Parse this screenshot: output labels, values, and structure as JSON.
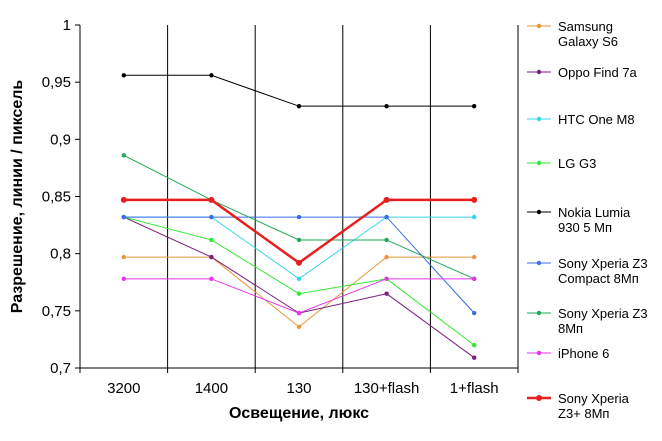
{
  "chart_data": {
    "type": "line",
    "xlabel": "Освещение,  люкс",
    "ylabel": "Разрешение,  линии / пиксель",
    "categories": [
      "3200",
      "1400",
      "130",
      "130+flash",
      "1+flash"
    ],
    "ylim": [
      0.7,
      1
    ],
    "yticks": [
      "0,7",
      "0,75",
      "0,8",
      "0,85",
      "0,9",
      "0,95",
      "1"
    ],
    "ytick_values": [
      0.7,
      0.75,
      0.8,
      0.85,
      0.9,
      0.95,
      1
    ],
    "grid": "vertical",
    "legend_position": "right",
    "series": [
      {
        "name": "Samsung Galaxy S6",
        "legend_lines": [
          "Samsung",
          "Galaxy S6"
        ],
        "color": "#e8963c",
        "width": 1,
        "values": [
          0.797,
          0.797,
          0.736,
          0.797,
          0.797
        ]
      },
      {
        "name": "Oppo Find 7a",
        "legend_lines": [
          "Oppo Find 7a"
        ],
        "color": "#7b1f7b",
        "width": 1,
        "values": [
          0.832,
          0.797,
          0.748,
          0.765,
          0.709
        ]
      },
      {
        "name": "HTC One M8",
        "legend_lines": [
          "HTC One M8"
        ],
        "color": "#33d6e8",
        "width": 1,
        "values": [
          0.832,
          0.832,
          0.778,
          0.832,
          0.832
        ]
      },
      {
        "name": "LG G3",
        "legend_lines": [
          "LG G3"
        ],
        "color": "#33e833",
        "width": 1,
        "values": [
          0.832,
          0.812,
          0.765,
          0.778,
          0.72
        ]
      },
      {
        "name": "Nokia Lumia 930 5 Мп",
        "legend_lines": [
          "Nokia Lumia",
          "930 5 Мп"
        ],
        "color": "#000000",
        "width": 1,
        "values": [
          0.956,
          0.956,
          0.929,
          0.929,
          0.929
        ]
      },
      {
        "name": "Sony Xperia Z3 Compact 8Мп",
        "legend_lines": [
          "Sony Xperia Z3",
          "Compact 8Мп"
        ],
        "color": "#3c6ce8",
        "width": 1,
        "values": [
          0.832,
          0.832,
          0.832,
          0.832,
          0.748
        ]
      },
      {
        "name": "Sony Xperia Z3 8Мп",
        "legend_lines": [
          "Sony Xperia Z3",
          "8Мп"
        ],
        "color": "#1fa85a",
        "width": 1,
        "values": [
          0.886,
          0.847,
          0.812,
          0.812,
          0.778
        ]
      },
      {
        "name": "iPhone 6",
        "legend_lines": [
          "iPhone 6"
        ],
        "color": "#e833e8",
        "width": 1,
        "values": [
          0.778,
          0.778,
          0.748,
          0.778,
          0.778
        ]
      },
      {
        "name": "Sony Xperia Z3+ 8Мп",
        "legend_lines": [
          "Sony Xperia",
          "Z3+ 8Мп"
        ],
        "color": "#e81f1f",
        "width": 2.5,
        "values": [
          0.847,
          0.847,
          0.792,
          0.847,
          0.847
        ]
      }
    ]
  }
}
